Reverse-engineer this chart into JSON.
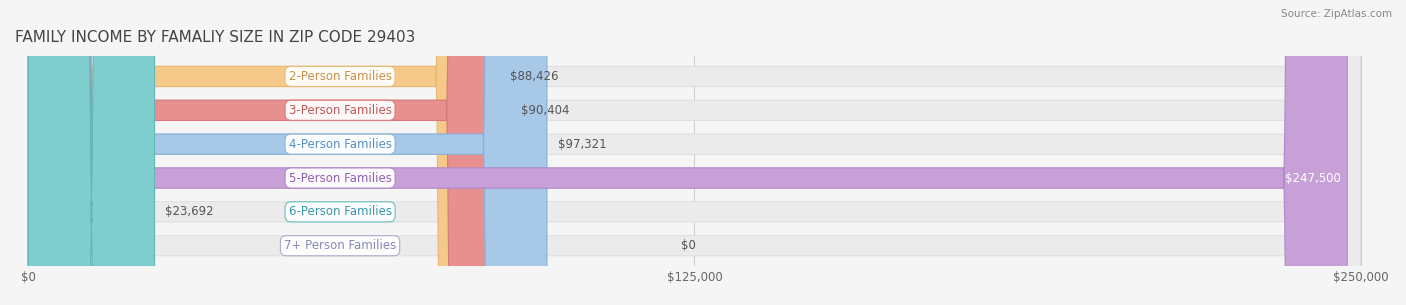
{
  "title": "FAMILY INCOME BY FAMALIY SIZE IN ZIP CODE 29403",
  "source": "Source: ZipAtlas.com",
  "categories": [
    "2-Person Families",
    "3-Person Families",
    "4-Person Families",
    "5-Person Families",
    "6-Person Families",
    "7+ Person Families"
  ],
  "values": [
    88426,
    90404,
    97321,
    247500,
    23692,
    0
  ],
  "bar_colors": [
    "#f5c98a",
    "#e89090",
    "#a8c8e8",
    "#c8a0d8",
    "#7ecece",
    "#c8c8e8"
  ],
  "bar_edge_colors": [
    "#e8b870",
    "#d87878",
    "#88b0d8",
    "#b088c8",
    "#60b8b8",
    "#a8a8d0"
  ],
  "label_colors": [
    "#c8904c",
    "#c05858",
    "#5890c0",
    "#9060b0",
    "#3898a8",
    "#8888b8"
  ],
  "value_labels": [
    "$88,426",
    "$90,404",
    "$97,321",
    "$247,500",
    "$23,692",
    "$0"
  ],
  "xlim": [
    0,
    250000
  ],
  "xticks": [
    0,
    125000,
    250000
  ],
  "xtick_labels": [
    "$0",
    "$125,000",
    "$250,000"
  ],
  "bar_height": 0.6,
  "background_color": "#f5f5f5",
  "bar_bg_color": "#ebebeb",
  "title_fontsize": 11,
  "label_fontsize": 8.5,
  "value_fontsize": 8.5
}
